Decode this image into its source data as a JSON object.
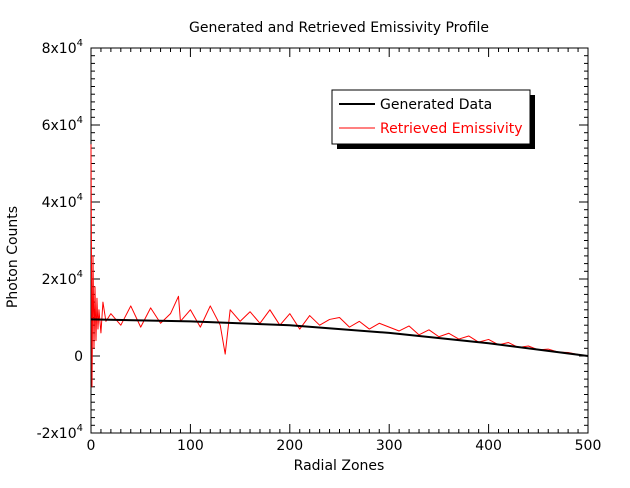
{
  "chart_data": {
    "type": "line",
    "title": "Generated and Retrieved Emissivity Profile",
    "xlabel": "Radial Zones",
    "ylabel": "Photon Counts",
    "xlim": [
      0,
      500
    ],
    "ylim": [
      -20000,
      80000
    ],
    "x_ticks": [
      {
        "value": 0,
        "label": "0"
      },
      {
        "value": 100,
        "label": "100"
      },
      {
        "value": 200,
        "label": "200"
      },
      {
        "value": 300,
        "label": "300"
      },
      {
        "value": 400,
        "label": "400"
      },
      {
        "value": 500,
        "label": "500"
      }
    ],
    "y_ticks": [
      {
        "value": -20000,
        "mantissa": "-2x10",
        "exp": "4"
      },
      {
        "value": 0,
        "mantissa": "0",
        "exp": ""
      },
      {
        "value": 20000,
        "mantissa": "2x10",
        "exp": "4"
      },
      {
        "value": 40000,
        "mantissa": "4x10",
        "exp": "4"
      },
      {
        "value": 60000,
        "mantissa": "6x10",
        "exp": "4"
      },
      {
        "value": 80000,
        "mantissa": "8x10",
        "exp": "4"
      }
    ],
    "grid": false,
    "legend": {
      "position": "top-right",
      "entries": [
        {
          "label": "Generated Data",
          "color": "#000000"
        },
        {
          "label": "Retrieved Emissivity",
          "color": "#ff0000"
        }
      ]
    },
    "series": [
      {
        "name": "Generated Data",
        "color": "#000000",
        "x": [
          0,
          100,
          200,
          300,
          400,
          500
        ],
        "y": [
          9500,
          9000,
          8000,
          6000,
          3300,
          0
        ]
      },
      {
        "name": "Retrieved Emissivity",
        "color": "#ff0000",
        "x": [
          0,
          1,
          2,
          3,
          4,
          5,
          6,
          7,
          8,
          10,
          12,
          15,
          20,
          30,
          40,
          50,
          60,
          70,
          80,
          88,
          90,
          100,
          110,
          120,
          130,
          135,
          140,
          150,
          160,
          170,
          180,
          190,
          200,
          210,
          220,
          230,
          240,
          250,
          260,
          270,
          280,
          290,
          300,
          310,
          320,
          330,
          340,
          350,
          360,
          370,
          380,
          390,
          400,
          410,
          420,
          430,
          440,
          450,
          460,
          470,
          480,
          490,
          500
        ],
        "y": [
          55000,
          -8000,
          26000,
          2000,
          18000,
          4000,
          15000,
          7000,
          12000,
          6000,
          14000,
          9000,
          11000,
          8000,
          13000,
          7500,
          12500,
          8500,
          11000,
          15500,
          9000,
          12000,
          7500,
          13000,
          8000,
          500,
          12000,
          9000,
          11500,
          8500,
          12000,
          8000,
          11000,
          7000,
          10500,
          8000,
          9500,
          10000,
          7500,
          9000,
          7000,
          8500,
          7500,
          6500,
          7800,
          5500,
          6800,
          5000,
          5900,
          4400,
          5200,
          3600,
          4300,
          2900,
          3500,
          2200,
          2600,
          1600,
          1800,
          1000,
          900,
          400,
          0
        ]
      }
    ]
  }
}
